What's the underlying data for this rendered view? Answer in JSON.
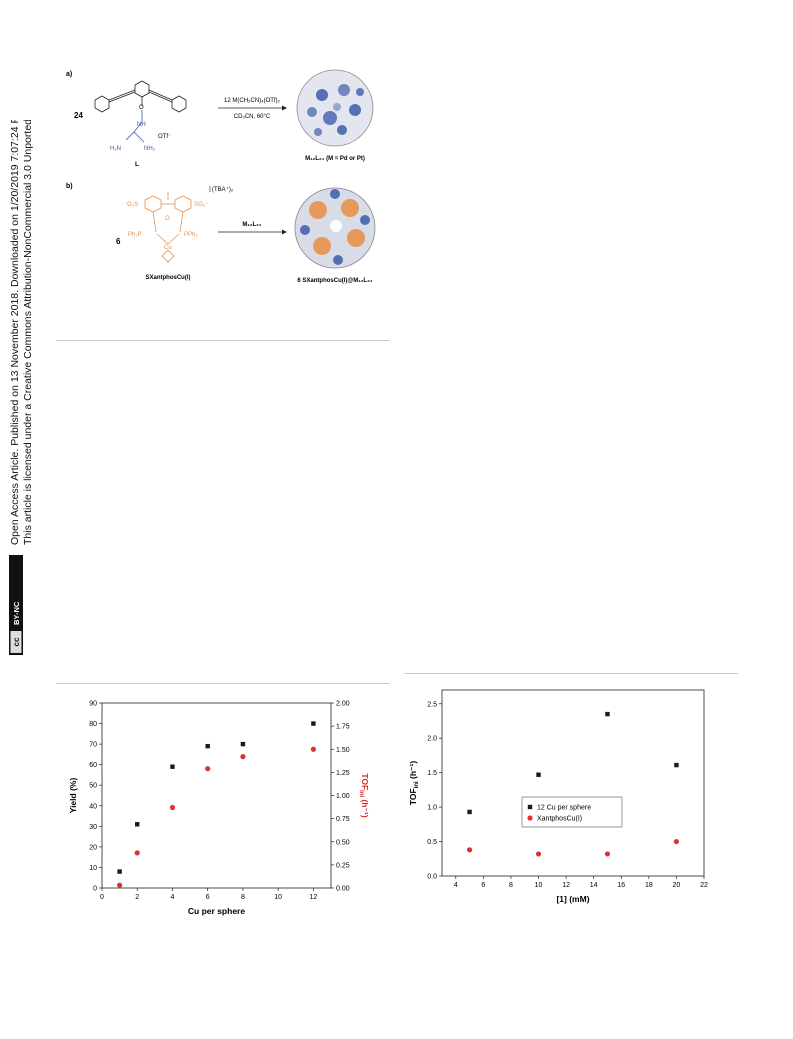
{
  "side_notice": {
    "line1": "Open Access Article. Published on 13 November 2018. Downloaded on 1/20/2019 7:07:24 PM.",
    "line2": "This article is licensed under a Creative Commons Attribution-NonCommercial 3.0 Unported Licence.",
    "badge_cc": "cc",
    "badge_by_nc": "BY-NC"
  },
  "scheme": {
    "panel_a": {
      "label": "a)",
      "reactant_count": "24",
      "anion": "OTf⁻",
      "ligand_label": "L",
      "nh": "NH",
      "h2n": "H₂N",
      "nh2": "NH₂",
      "reagent_top": "12 M(CH₃CN)₄(OTf)₂",
      "reagent_bottom": "CD₃CN, 60°C",
      "product_label": "M₁₂L₂₄ (M = Pd or Pt)"
    },
    "panel_b": {
      "label": "b)",
      "reactant_count": "6",
      "counterion": "(TBA⁺)₂",
      "so3_left": "⁻O₃S",
      "so3_right": "SO₃⁻",
      "ph2p_left": "Ph₂P",
      "pph2_right": "PPh₂",
      "cu": "Cu",
      "o": "O",
      "reactant_label": "SXantphosCu(I)",
      "reagent": "M₁₂L₂₄",
      "product_label": "6 SXantphosCu(I)@M₁₂L₂₄"
    }
  },
  "colors": {
    "black_series": "#1a1a1a",
    "red_series": "#e03030",
    "red_axis": "#d42a2a",
    "rule": "#c9c9c9",
    "ligand_blue": "#3c5aa8",
    "cu_orange": "#e8914a"
  },
  "chart_data": [
    {
      "type": "scatter",
      "xlabel": "Cu per sphere",
      "ylabel": "Yield (%)",
      "y2label": "TOF",
      "y2label_sub": "ini",
      "y2label_unit": " (h⁻¹)",
      "xlim": [
        0,
        13
      ],
      "ylim": [
        0,
        90
      ],
      "y2lim": [
        0,
        2.0
      ],
      "xticks": [
        0,
        2,
        4,
        6,
        8,
        10,
        12
      ],
      "yticks": [
        0,
        10,
        20,
        30,
        40,
        50,
        60,
        70,
        80,
        90
      ],
      "y2ticks": [
        "0.00",
        "0.25",
        "0.50",
        "0.75",
        "1.00",
        "1.25",
        "1.50",
        "1.75",
        "2.00"
      ],
      "series": [
        {
          "axis": "left",
          "marker": "square",
          "color": "#1a1a1a",
          "x": [
            1,
            2,
            4,
            6,
            8,
            12
          ],
          "y": [
            8,
            31,
            59,
            69,
            70,
            80
          ]
        },
        {
          "axis": "right",
          "marker": "circle",
          "color": "#e03030",
          "x": [
            1,
            2,
            4,
            6,
            8,
            12
          ],
          "y": [
            0.03,
            0.38,
            0.87,
            1.29,
            1.42,
            1.5
          ]
        }
      ]
    },
    {
      "type": "scatter",
      "xlabel": "[1] (mM)",
      "ylabel": "TOF",
      "ylabel_sub": "ini",
      "ylabel_unit": " (h⁻¹)",
      "xlim": [
        3,
        22
      ],
      "ylim": [
        0,
        2.7
      ],
      "xticks": [
        4,
        6,
        8,
        10,
        12,
        14,
        16,
        18,
        20,
        22
      ],
      "yticks": [
        "0.0",
        "0.5",
        "1.0",
        "1.5",
        "2.0",
        "2.5"
      ],
      "legend_position": "center-left",
      "series": [
        {
          "name": "12 Cu per sphere",
          "marker": "square",
          "color": "#1a1a1a",
          "x": [
            5,
            10,
            15,
            20
          ],
          "y": [
            0.93,
            1.47,
            2.35,
            1.61
          ]
        },
        {
          "name": "XantphosCu(I)",
          "marker": "circle",
          "color": "#e03030",
          "x": [
            5,
            10,
            15,
            20
          ],
          "y": [
            0.38,
            0.32,
            0.32,
            0.5
          ]
        }
      ]
    }
  ]
}
